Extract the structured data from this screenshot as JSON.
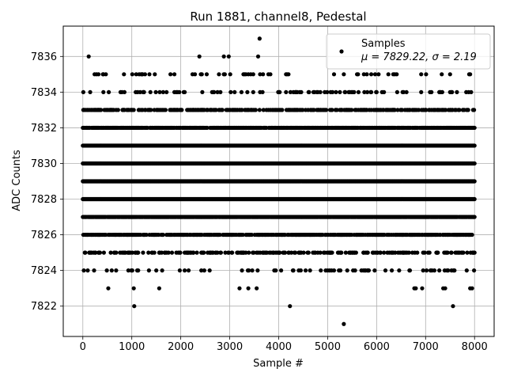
{
  "chart_data": {
    "type": "scatter",
    "title": "Run 1881, channel8, Pedestal",
    "xlabel": "Sample #",
    "ylabel": "ADC Counts",
    "xlim": [
      -400,
      8400
    ],
    "ylim": [
      7820.3,
      7837.7
    ],
    "x_ticks": [
      0,
      1000,
      2000,
      3000,
      4000,
      5000,
      6000,
      7000,
      8000
    ],
    "y_ticks": [
      7822,
      7824,
      7826,
      7828,
      7830,
      7832,
      7834,
      7836
    ],
    "grid": true,
    "legend": {
      "placement": "top-right",
      "series_label": "Samples",
      "stats_label": "μ = 7829.22, σ = 2.19"
    },
    "series": [
      {
        "name": "Samples",
        "color": "#000000",
        "marker": "circle",
        "n_samples": 8000,
        "mean": 7829.22,
        "sigma": 2.19,
        "dense_levels": [
          7824,
          7825,
          7826,
          7827,
          7828,
          7829,
          7830,
          7831,
          7832,
          7833,
          7834,
          7835
        ],
        "outliers": [
          {
            "x": 120,
            "y": 7836
          },
          {
            "x": 2380,
            "y": 7836
          },
          {
            "x": 2880,
            "y": 7836
          },
          {
            "x": 2980,
            "y": 7836
          },
          {
            "x": 3580,
            "y": 7836
          },
          {
            "x": 3610,
            "y": 7837
          },
          {
            "x": 520,
            "y": 7823
          },
          {
            "x": 1040,
            "y": 7823
          },
          {
            "x": 1560,
            "y": 7823
          },
          {
            "x": 3200,
            "y": 7823
          },
          {
            "x": 3380,
            "y": 7823
          },
          {
            "x": 3550,
            "y": 7823
          },
          {
            "x": 6770,
            "y": 7823
          },
          {
            "x": 6800,
            "y": 7823
          },
          {
            "x": 6930,
            "y": 7823
          },
          {
            "x": 7360,
            "y": 7823
          },
          {
            "x": 7400,
            "y": 7823
          },
          {
            "x": 7910,
            "y": 7823
          },
          {
            "x": 7950,
            "y": 7823
          },
          {
            "x": 1050,
            "y": 7822
          },
          {
            "x": 4230,
            "y": 7822
          },
          {
            "x": 7560,
            "y": 7822
          },
          {
            "x": 5330,
            "y": 7821
          }
        ]
      }
    ]
  }
}
